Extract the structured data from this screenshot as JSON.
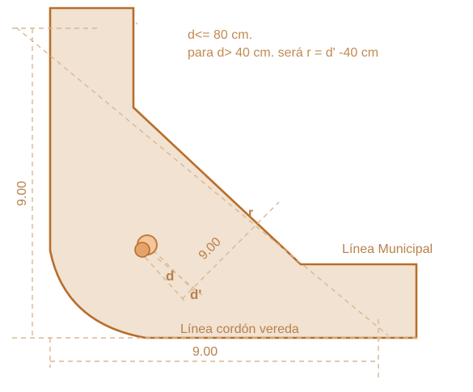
{
  "notes": {
    "line1": "d<= 80 cm.",
    "line2": "para d> 40 cm. será r = d' -40 cm"
  },
  "labels": {
    "linea_municipal": "Línea Municipal",
    "linea_cordon": "Línea cordón vereda",
    "dim_left": "9.00",
    "dim_bottom": "9.00",
    "dim_diagonal": "9.00",
    "r": "r",
    "d": "d",
    "d_prime": "d'"
  },
  "colors": {
    "fill": "#f1e2d2",
    "outline": "#b86e2a",
    "dash": "#d9b892",
    "text": "#b9814a"
  }
}
